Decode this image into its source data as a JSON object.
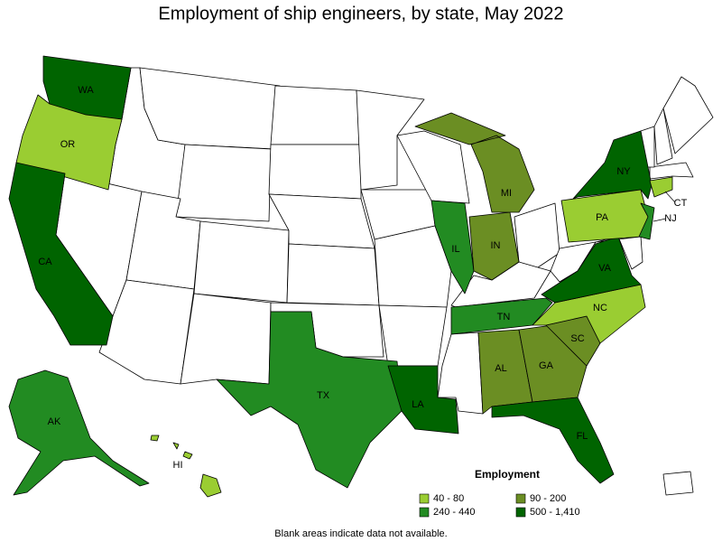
{
  "title": "Employment of ship engineers, by state, May 2022",
  "legend": {
    "title": "Employment",
    "items": [
      {
        "label": "40 - 80",
        "color": "#9acd32"
      },
      {
        "label": "90 - 200",
        "color": "#6b8e23"
      },
      {
        "label": "240 - 440",
        "color": "#228b22"
      },
      {
        "label": "500 - 1,410",
        "color": "#006400"
      }
    ]
  },
  "states": [
    {
      "label": "WA",
      "color": "#006400"
    },
    {
      "label": "OR",
      "color": "#9acd32"
    },
    {
      "label": "CA",
      "color": "#006400"
    },
    {
      "label": "AK",
      "color": "#228b22"
    },
    {
      "label": "HI",
      "color": "#9acd32"
    },
    {
      "label": "TX",
      "color": "#228b22"
    },
    {
      "label": "LA",
      "color": "#006400"
    },
    {
      "label": "IL",
      "color": "#228b22"
    },
    {
      "label": "IN",
      "color": "#6b8e23"
    },
    {
      "label": "MI",
      "color": "#6b8e23"
    },
    {
      "label": "TN",
      "color": "#228b22"
    },
    {
      "label": "AL",
      "color": "#6b8e23"
    },
    {
      "label": "GA",
      "color": "#6b8e23"
    },
    {
      "label": "SC",
      "color": "#6b8e23"
    },
    {
      "label": "NC",
      "color": "#9acd32"
    },
    {
      "label": "VA",
      "color": "#006400"
    },
    {
      "label": "FL",
      "color": "#006400"
    },
    {
      "label": "NY",
      "color": "#006400"
    },
    {
      "label": "PA",
      "color": "#9acd32"
    },
    {
      "label": "NJ",
      "color": "#228b22"
    },
    {
      "label": "CT",
      "color": "#9acd32"
    }
  ],
  "note": "Blank areas indicate data not available."
}
